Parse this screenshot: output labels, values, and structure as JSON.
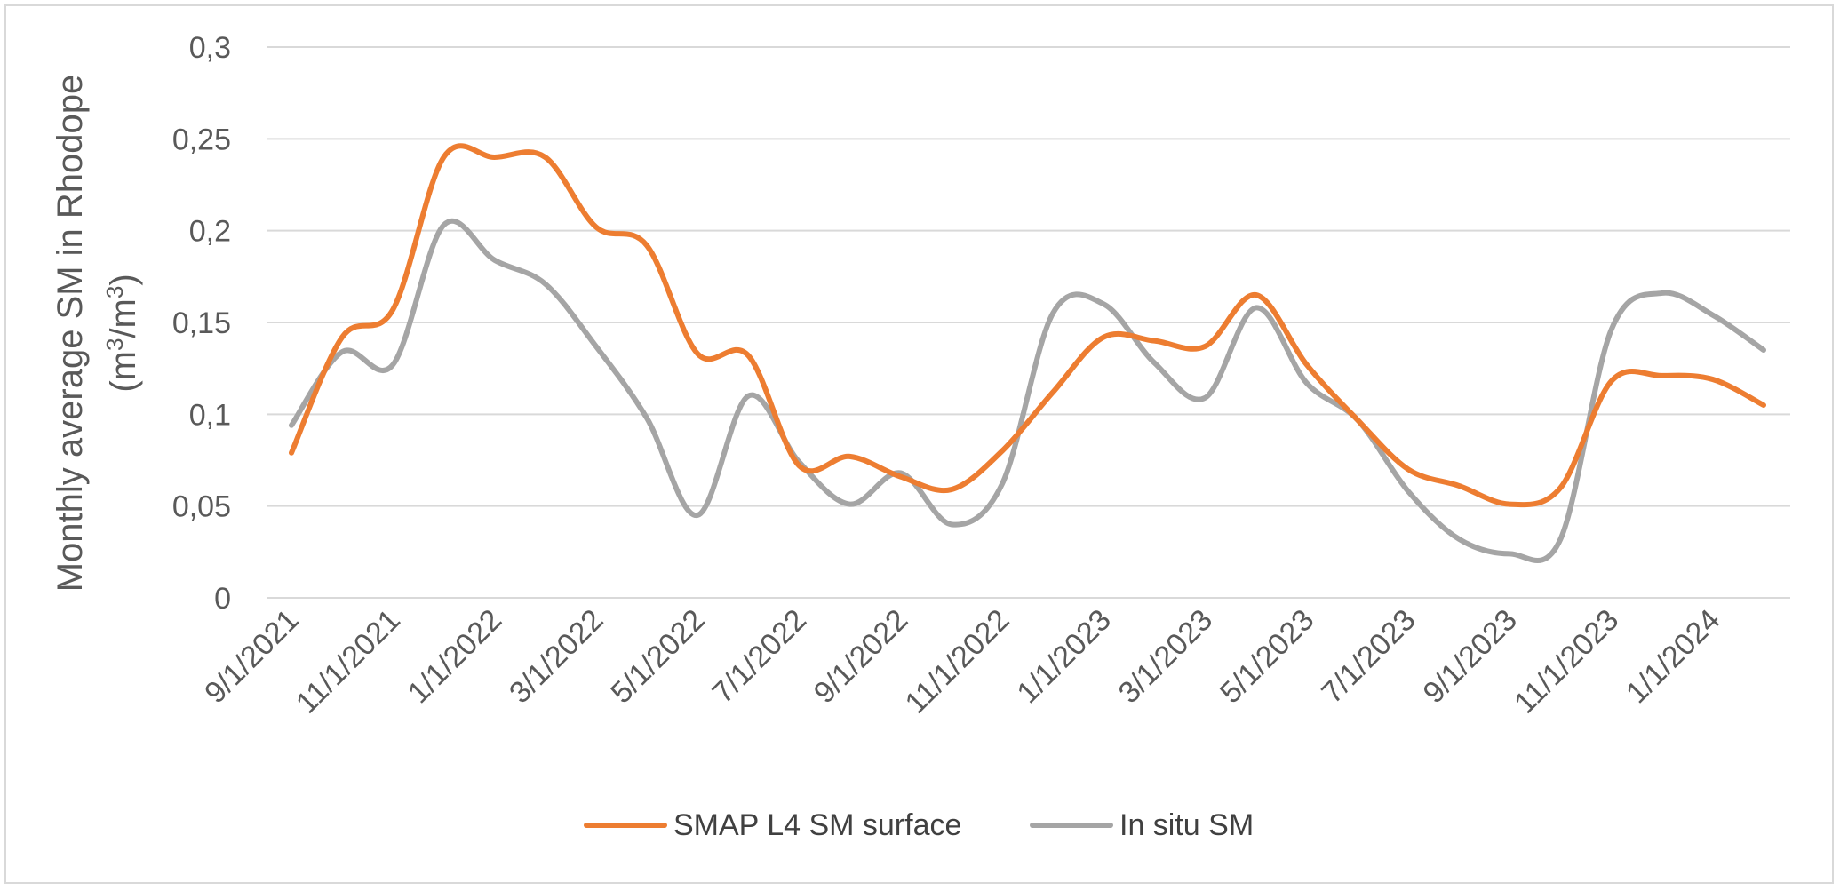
{
  "chart_data": {
    "type": "line",
    "title": "",
    "xlabel": "",
    "ylabel_line1": "Monthly average SM in Rhodope",
    "ylabel_line2_parts": [
      "(m",
      "3",
      "/m",
      "3",
      ")"
    ],
    "ylim": [
      0,
      0.3
    ],
    "yticks": [
      0,
      0.05,
      0.1,
      0.15,
      0.2,
      0.25,
      0.3
    ],
    "ytick_labels": [
      "0",
      "0,05",
      "0,1",
      "0,15",
      "0,2",
      "0,25",
      "0,3"
    ],
    "categories": [
      "9/1/2021",
      "10/1/2021",
      "11/1/2021",
      "12/1/2021",
      "1/1/2022",
      "2/1/2022",
      "3/1/2022",
      "4/1/2022",
      "5/1/2022",
      "6/1/2022",
      "7/1/2022",
      "8/1/2022",
      "9/1/2022",
      "10/1/2022",
      "11/1/2022",
      "12/1/2022",
      "1/1/2023",
      "2/1/2023",
      "3/1/2023",
      "4/1/2023",
      "5/1/2023",
      "6/1/2023",
      "7/1/2023",
      "8/1/2023",
      "9/1/2023",
      "10/1/2023",
      "11/1/2023",
      "12/1/2023",
      "1/1/2024",
      "2/1/2024"
    ],
    "xtick_labels": [
      "9/1/2021",
      "11/1/2021",
      "1/1/2022",
      "3/1/2022",
      "5/1/2022",
      "7/1/2022",
      "9/1/2022",
      "11/1/2022",
      "1/1/2023",
      "3/1/2023",
      "5/1/2023",
      "7/1/2023",
      "9/1/2023",
      "11/1/2023",
      "1/1/2024"
    ],
    "series": [
      {
        "name": "SMAP L4 SM surface",
        "color": "#ED7D31",
        "values": [
          0.079,
          0.142,
          0.157,
          0.24,
          0.24,
          0.24,
          0.202,
          0.192,
          0.133,
          0.132,
          0.072,
          0.077,
          0.066,
          0.059,
          0.08,
          0.112,
          0.142,
          0.14,
          0.137,
          0.165,
          0.127,
          0.097,
          0.07,
          0.061,
          0.051,
          0.06,
          0.118,
          0.121,
          0.119,
          0.105
        ]
      },
      {
        "name": "In situ SM",
        "color": "#A5A5A5",
        "values": [
          0.094,
          0.134,
          0.127,
          0.203,
          0.184,
          0.171,
          0.137,
          0.098,
          0.045,
          0.11,
          0.074,
          0.051,
          0.068,
          0.04,
          0.062,
          0.155,
          0.16,
          0.128,
          0.109,
          0.158,
          0.117,
          0.097,
          0.058,
          0.032,
          0.024,
          0.032,
          0.146,
          0.166,
          0.154,
          0.135
        ]
      }
    ],
    "grid": true,
    "legend_position": "bottom",
    "gridline_color": "#D9D9D9"
  }
}
